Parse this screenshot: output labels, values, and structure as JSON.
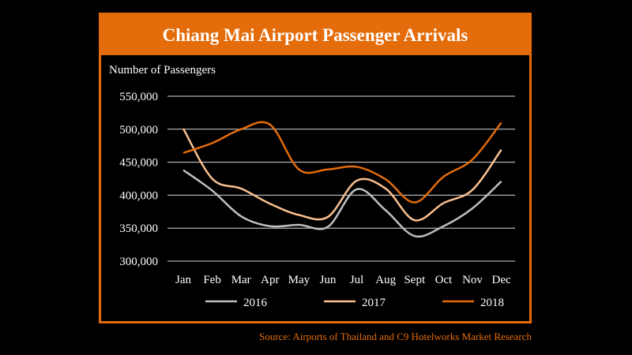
{
  "chart_data": {
    "type": "line",
    "title": "Chiang Mai Airport Passenger Arrivals",
    "ylabel": "Number of Passengers",
    "xlabel": "",
    "categories": [
      "Jan",
      "Feb",
      "Mar",
      "Apr",
      "May",
      "Jun",
      "Jul",
      "Aug",
      "Sept",
      "Oct",
      "Nov",
      "Dec"
    ],
    "ylim": [
      300000,
      550000
    ],
    "yticks": [
      300000,
      350000,
      400000,
      450000,
      500000,
      550000
    ],
    "ytick_labels": [
      "300,000",
      "350,000",
      "400,000",
      "450,000",
      "500,000",
      "550,000"
    ],
    "grid": true,
    "legend_position": "bottom",
    "series": [
      {
        "name": "2016",
        "color": "#bfbfbf",
        "values": [
          438000,
          407000,
          368000,
          353000,
          355000,
          352000,
          409000,
          377000,
          338000,
          353000,
          380000,
          421000
        ]
      },
      {
        "name": "2017",
        "color": "#fac090",
        "values": [
          501000,
          425000,
          410000,
          387000,
          370000,
          367000,
          422000,
          410000,
          362000,
          388000,
          408000,
          469000
        ]
      },
      {
        "name": "2018",
        "color": "#e46c0a",
        "values": [
          464000,
          479000,
          500000,
          507000,
          439000,
          439000,
          443000,
          424000,
          389000,
          428000,
          454000,
          510000
        ]
      }
    ]
  },
  "source_text": "Source: Airports of Thailand and C9 Hotelworks Market Research",
  "colors": {
    "accent": "#e46c0a",
    "background": "#000000",
    "grid": "#d9d9d9",
    "text": "#ffffff"
  }
}
